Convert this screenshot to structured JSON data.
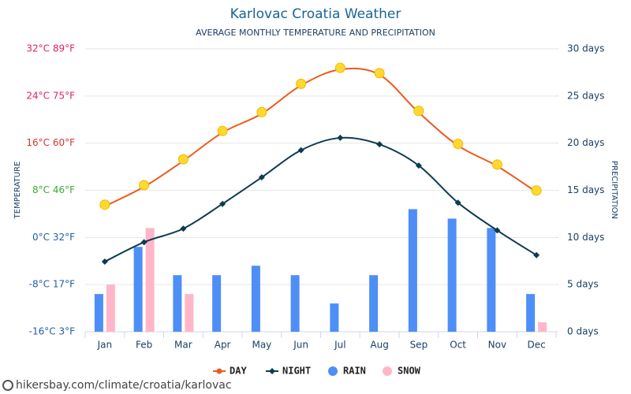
{
  "chart_data": {
    "type": "combo",
    "title": "Karlovac Croatia Weather",
    "subtitle": "AVERAGE MONTHLY TEMPERATURE AND PRECIPITATION",
    "y_label": "TEMPERATURE",
    "y2_label": "PRECIPITATION",
    "categories": [
      "Jan",
      "Feb",
      "Mar",
      "Apr",
      "May",
      "Jun",
      "Jul",
      "Aug",
      "Sep",
      "Oct",
      "Nov",
      "Dec"
    ],
    "ylim": [
      -16,
      32
    ],
    "yticks": [
      {
        "value": -16,
        "label": "-16°C 3°F"
      },
      {
        "value": -8,
        "label": "-8°C 17°F"
      },
      {
        "value": 0,
        "label": "0°C 32°F"
      },
      {
        "value": 8,
        "label": "8°C 46°F"
      },
      {
        "value": 16,
        "label": "16°C 60°F"
      },
      {
        "value": 24,
        "label": "24°C 75°F"
      },
      {
        "value": 32,
        "label": "32°C 89°F"
      }
    ],
    "ytick_colors": [
      "#1f5fa8",
      "#1f5fa8",
      "#1f5fa8",
      "#3aaa35",
      "#e0302a",
      "#e0206a",
      "#e0206a"
    ],
    "y2lim": [
      0,
      30
    ],
    "y2ticks": [
      {
        "value": 0,
        "label": "0 days"
      },
      {
        "value": 5,
        "label": "5 days"
      },
      {
        "value": 10,
        "label": "10 days"
      },
      {
        "value": 15,
        "label": "15 days"
      },
      {
        "value": 20,
        "label": "20 days"
      },
      {
        "value": 25,
        "label": "25 days"
      },
      {
        "value": 30,
        "label": "30 days"
      }
    ],
    "grid": true,
    "legend": "bottom",
    "series": [
      {
        "name": "DAY",
        "type": "line",
        "color": "#ee5a1d",
        "values": [
          5.3,
          8.6,
          13.0,
          17.8,
          21.0,
          25.8,
          28.5,
          27.6,
          21.2,
          15.6,
          12.1,
          7.7
        ]
      },
      {
        "name": "NIGHT",
        "type": "line",
        "color": "#0d3b52",
        "values": [
          -4.1,
          -0.8,
          1.5,
          5.7,
          10.2,
          14.8,
          16.9,
          15.8,
          12.2,
          5.9,
          1.2,
          -3.0
        ]
      },
      {
        "name": "RAIN",
        "type": "bar",
        "axis": "y2",
        "color": "#4e8ef7",
        "values": [
          4,
          9,
          6,
          6,
          7,
          6,
          3,
          6,
          13,
          12,
          11,
          4
        ]
      },
      {
        "name": "SNOW",
        "type": "bar",
        "axis": "y2",
        "color": "#ffb6c8",
        "values": [
          5,
          11,
          4,
          0,
          0,
          0,
          0,
          0,
          0,
          0,
          0,
          1
        ]
      }
    ]
  },
  "footer": "hikersbay.com/climate/croatia/karlovac"
}
